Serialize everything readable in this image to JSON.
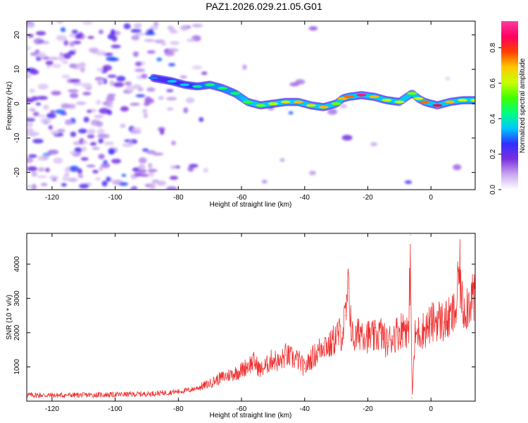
{
  "title": "PAZ1.2026.029.21.05.G01",
  "chart_data": [
    {
      "type": "heatmap",
      "xlabel": "Height of straight line (km)",
      "ylabel": "Frequency (Hz)",
      "xlim": [
        -128,
        14
      ],
      "ylim": [
        -25,
        24
      ],
      "xticks": [
        -120,
        -100,
        -80,
        -60,
        -40,
        -20,
        0
      ],
      "yticks": [
        -20,
        -10,
        0,
        10,
        20
      ],
      "colorbar": {
        "label": "Normalized spectral amplitude",
        "range": [
          0,
          0.95
        ],
        "ticks": [
          0.0,
          0.2,
          0.4,
          0.6,
          0.8
        ],
        "colormap": [
          "#ffffff",
          "#c9a8f0",
          "#7b2fe0",
          "#2f2fff",
          "#00c8ff",
          "#00ff80",
          "#40ff00",
          "#c8ff00",
          "#ffc800",
          "#ff4000",
          "#ff0060",
          "#ff3ca0"
        ]
      },
      "ridge": {
        "x": [
          -88,
          -82,
          -78,
          -74,
          -70,
          -66,
          -62,
          -58,
          -54,
          -50,
          -46,
          -42,
          -38,
          -34,
          -30,
          -28,
          -26,
          -22,
          -18,
          -14,
          -10,
          -6,
          -4,
          -2,
          2,
          6,
          10,
          14
        ],
        "y": [
          7.5,
          6.5,
          5.5,
          5.0,
          5.5,
          4.5,
          3.0,
          0.5,
          -0.5,
          0.0,
          0.5,
          0.5,
          -0.5,
          -1.0,
          0.0,
          1.5,
          2.0,
          2.5,
          2.0,
          1.0,
          0.5,
          3.0,
          1.5,
          0.5,
          -0.5,
          0.5,
          1.0,
          1.0
        ],
        "amplitude": [
          0.3,
          0.35,
          0.35,
          0.4,
          0.45,
          0.45,
          0.45,
          0.5,
          0.55,
          0.6,
          0.65,
          0.7,
          0.65,
          0.7,
          0.55,
          0.7,
          0.75,
          0.9,
          0.7,
          0.6,
          0.6,
          0.55,
          0.6,
          0.75,
          0.85,
          0.7,
          0.6,
          0.6
        ]
      }
    },
    {
      "type": "line",
      "xlabel": "Height of straight line (km)",
      "ylabel": "SNR (10 * v/v)",
      "xlim": [
        -128,
        14
      ],
      "ylim": [
        0,
        4900
      ],
      "xticks": [
        -120,
        -100,
        -80,
        -60,
        -40,
        -20,
        0
      ],
      "yticks": [
        1000,
        2000,
        3000,
        4000
      ],
      "color": "#f03030",
      "series": [
        {
          "x": [
            -128,
            -120,
            -110,
            -100,
            -90,
            -85,
            -80,
            -76,
            -72,
            -70,
            -68,
            -66,
            -64,
            -62,
            -60,
            -58,
            -56,
            -54,
            -52,
            -50,
            -48,
            -46,
            -44,
            -42,
            -40,
            -38,
            -36,
            -34,
            -32,
            -30,
            -28,
            -27,
            -26,
            -25,
            -24,
            -22,
            -20,
            -18,
            -16,
            -14,
            -12,
            -10,
            -8,
            -7,
            -6.5,
            -6,
            -5,
            -4,
            -2,
            0,
            2,
            4,
            6,
            8,
            9,
            10,
            12,
            13,
            14
          ],
          "y": [
            180,
            170,
            180,
            190,
            210,
            240,
            280,
            330,
            450,
            520,
            620,
            700,
            760,
            820,
            900,
            1050,
            1150,
            900,
            1050,
            1250,
            1100,
            1350,
            1250,
            1200,
            950,
            1250,
            1400,
            1700,
            1600,
            1900,
            2000,
            2500,
            3300,
            1900,
            1800,
            2100,
            1900,
            1850,
            2000,
            1700,
            1900,
            2050,
            2200,
            1900,
            4850,
            100,
            1900,
            2000,
            2100,
            2250,
            2400,
            2300,
            2400,
            2650,
            3900,
            2700,
            2900,
            3200,
            2800
          ]
        }
      ]
    }
  ]
}
